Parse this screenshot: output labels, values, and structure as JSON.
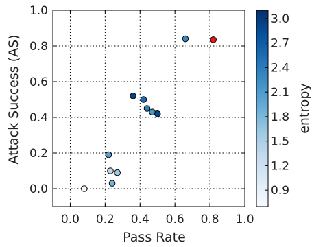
{
  "chart_data": {
    "type": "scatter",
    "xlabel": "Pass Rate",
    "ylabel": "Attack Success (AS)",
    "xlim": [
      -0.1,
      1.0
    ],
    "ylim": [
      -0.1,
      1.0
    ],
    "xticks": [
      "0.0",
      "0.2",
      "0.4",
      "0.6",
      "0.8",
      "1.0"
    ],
    "yticks": [
      "0.0",
      "0.2",
      "0.4",
      "0.6",
      "0.8",
      "1.0"
    ],
    "grid": true,
    "colorbar": {
      "label": "entropy",
      "range": [
        0.7,
        3.1
      ],
      "ticks": [
        "0.9",
        "1.2",
        "1.5",
        "1.8",
        "2.1",
        "2.4",
        "2.7",
        "3.0"
      ],
      "colormap": "Blues"
    },
    "points": [
      {
        "x": 0.08,
        "y": 0.0,
        "entropy": 0.75
      },
      {
        "x": 0.24,
        "y": 0.03,
        "entropy": 1.85
      },
      {
        "x": 0.23,
        "y": 0.1,
        "entropy": 1.35
      },
      {
        "x": 0.27,
        "y": 0.09,
        "entropy": 1.6
      },
      {
        "x": 0.22,
        "y": 0.19,
        "entropy": 2.05
      },
      {
        "x": 0.36,
        "y": 0.52,
        "entropy": 2.95
      },
      {
        "x": 0.42,
        "y": 0.5,
        "entropy": 2.55
      },
      {
        "x": 0.44,
        "y": 0.45,
        "entropy": 2.35
      },
      {
        "x": 0.47,
        "y": 0.43,
        "entropy": 2.15
      },
      {
        "x": 0.5,
        "y": 0.42,
        "entropy": 2.9
      },
      {
        "x": 0.66,
        "y": 0.84,
        "entropy": 2.3
      },
      {
        "x": 0.82,
        "y": 0.835,
        "entropy": null,
        "highlight_color": "#e41a1c"
      }
    ]
  }
}
